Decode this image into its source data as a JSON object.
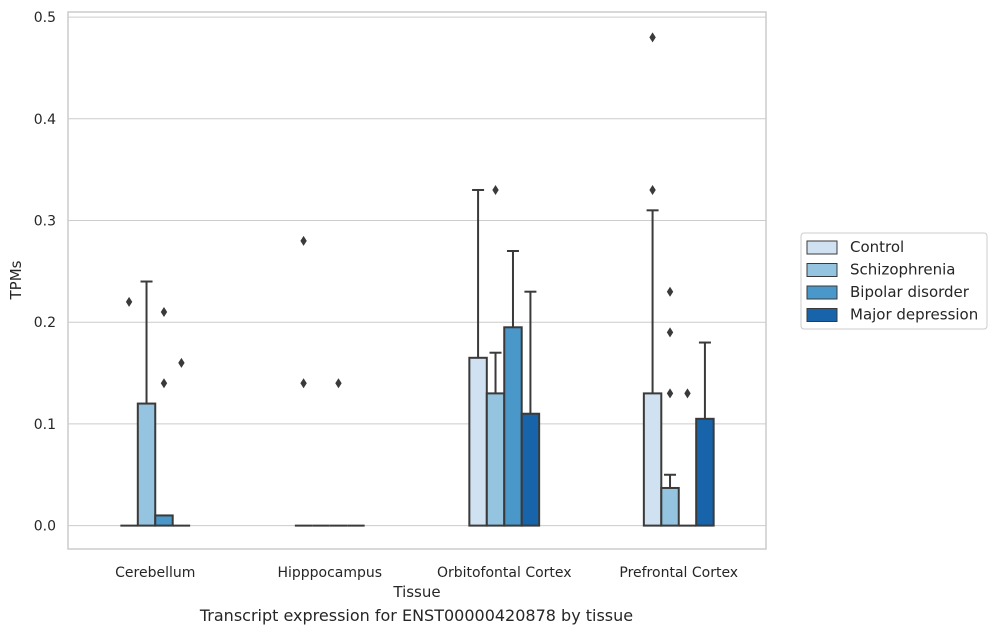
{
  "caption": "Transcript expression for ENST00000420878 by tissue",
  "chart_data": {
    "type": "bar",
    "xlabel": "Tissue",
    "ylabel": "TPMs",
    "ylim": [
      -0.023,
      0.505
    ],
    "yticks": [
      0.0,
      0.1,
      0.2,
      0.3,
      0.4,
      0.5
    ],
    "ytick_labels": [
      "0.0",
      "0.1",
      "0.2",
      "0.3",
      "0.4",
      "0.5"
    ],
    "grid": true,
    "legend_position": "right",
    "categories": [
      "Cerebellum",
      "Hipppocampus",
      "Orbitofontal Cortex",
      "Prefrontal Cortex"
    ],
    "series": [
      {
        "name": "Control",
        "color": "#d0e1f2",
        "values": [
          0.0,
          0.0,
          0.165,
          0.13
        ],
        "error_upper": [
          0.0,
          0.0,
          0.33,
          0.31
        ],
        "outliers": [
          [
            0.22
          ],
          [
            0.28,
            0.14
          ],
          [],
          [
            0.48,
            0.33
          ]
        ]
      },
      {
        "name": "Schizophrenia",
        "color": "#94c4df",
        "values": [
          0.12,
          0.0,
          0.13,
          0.037
        ],
        "error_upper": [
          0.24,
          0.0,
          0.17,
          0.05
        ],
        "outliers": [
          [],
          [],
          [
            0.33
          ],
          [
            0.23,
            0.19,
            0.13
          ]
        ]
      },
      {
        "name": "Bipolar disorder",
        "color": "#4a98c9",
        "values": [
          0.01,
          0.0,
          0.195,
          0.0
        ],
        "error_upper": [
          0.01,
          0.0,
          0.27,
          0.0
        ],
        "outliers": [
          [
            0.21,
            0.14
          ],
          [
            0.14
          ],
          [],
          [
            0.13
          ]
        ]
      },
      {
        "name": "Major depression",
        "color": "#1764ab",
        "values": [
          0.0,
          0.0,
          0.11,
          0.105
        ],
        "error_upper": [
          0.0,
          0.0,
          0.23,
          0.18
        ],
        "outliers": [
          [
            0.16
          ],
          [],
          [],
          []
        ]
      }
    ]
  }
}
